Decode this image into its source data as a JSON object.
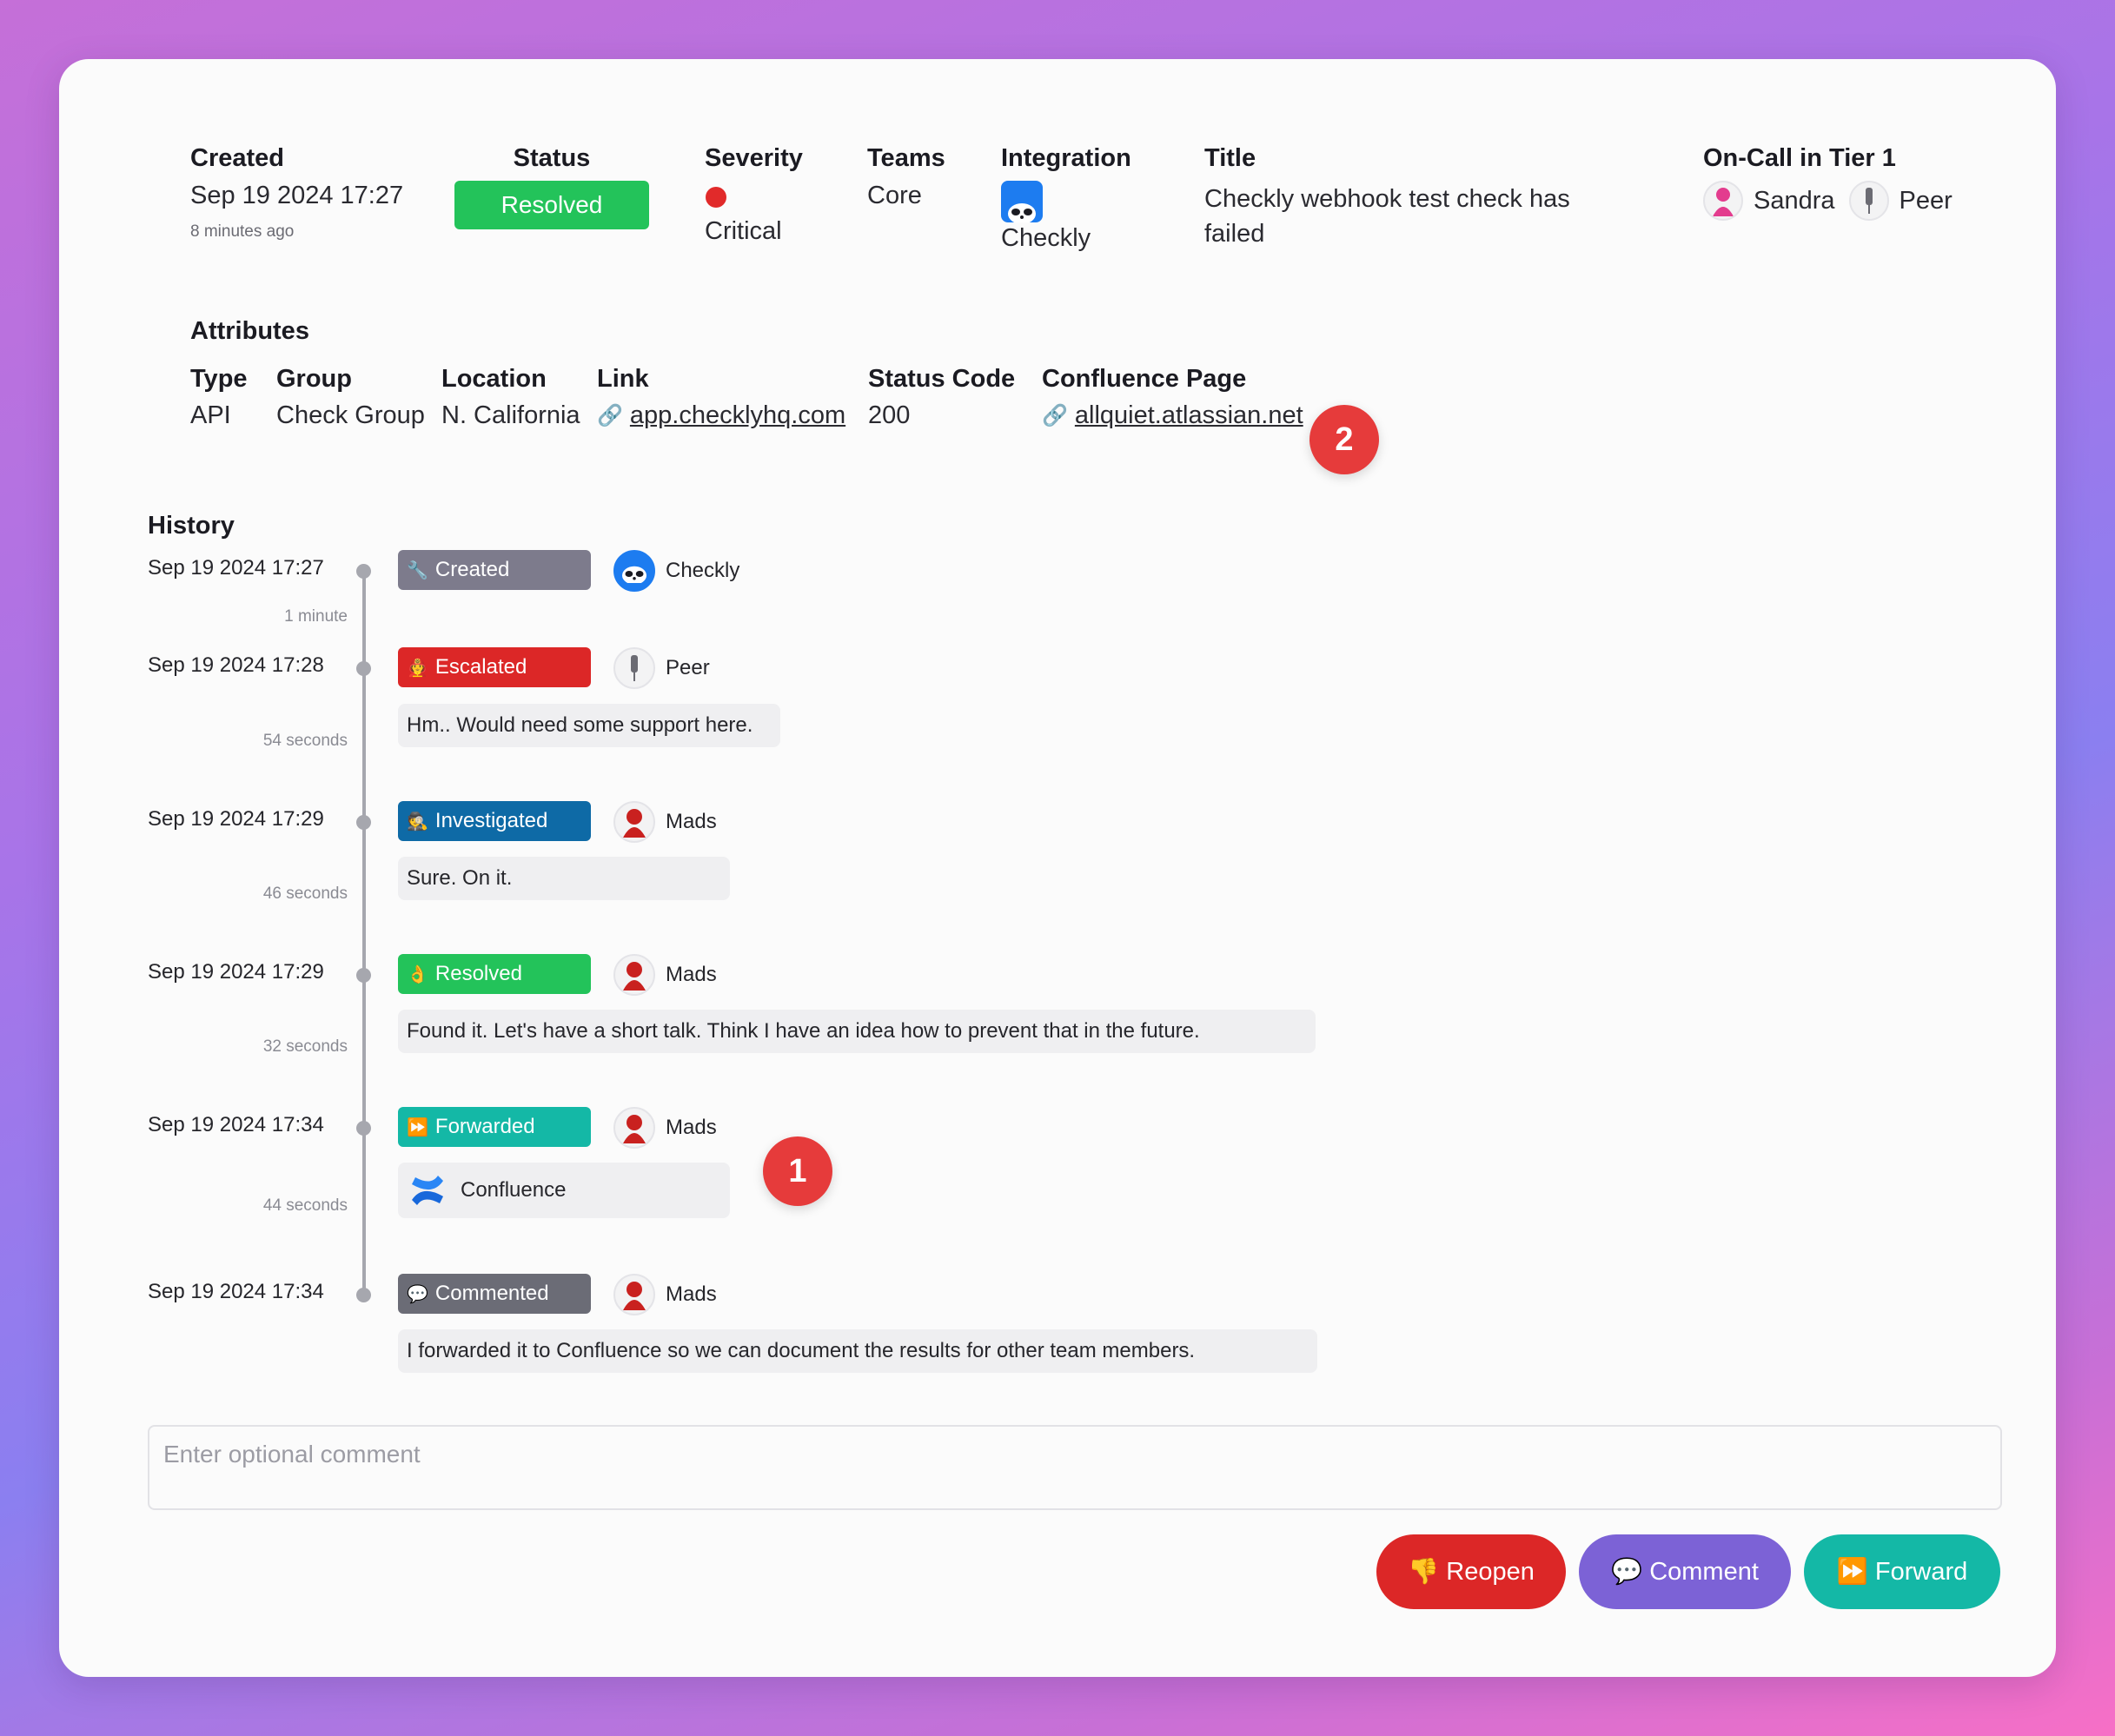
{
  "header": {
    "created_label": "Created",
    "created_value": "Sep 19 2024 17:27",
    "created_ago": "8 minutes ago",
    "status_label": "Status",
    "status_value": "Resolved",
    "severity_label": "Severity",
    "severity_value": "Critical",
    "teams_label": "Teams",
    "teams_value": "Core",
    "integration_label": "Integration",
    "integration_value": "Checkly",
    "title_label": "Title",
    "title_value": "Checkly webhook test check has failed",
    "oncall_label": "On-Call in Tier 1",
    "oncall_users": [
      "Sandra",
      "Peer"
    ]
  },
  "attributes": {
    "heading": "Attributes",
    "type_label": "Type",
    "type_value": "API",
    "group_label": "Group",
    "group_value": "Check Group",
    "location_label": "Location",
    "location_value": "N. California",
    "link_label": "Link",
    "link_value": "app.checklyhq.com",
    "status_code_label": "Status Code",
    "status_code_value": "200",
    "confluence_label": "Confluence Page",
    "confluence_value": "allquiet.atlassian.net"
  },
  "history": {
    "heading": "History",
    "events": [
      {
        "date": "Sep 19 2024 17:27",
        "tag": "Created",
        "emoji": "🔧",
        "color": "#7d7b8c",
        "actor": "Checkly",
        "gap": "1 minute"
      },
      {
        "date": "Sep 19 2024 17:28",
        "tag": "Escalated",
        "emoji": "🧑‍🚒",
        "color": "#dc2727",
        "actor": "Peer",
        "comment": "Hm.. Would need some support here.",
        "gap": "54 seconds"
      },
      {
        "date": "Sep 19 2024 17:29",
        "tag": "Investigated",
        "emoji": "🕵️",
        "color": "#0e6aa6",
        "actor": "Mads",
        "comment": "Sure. On it.",
        "gap": "46 seconds"
      },
      {
        "date": "Sep 19 2024 17:29",
        "tag": "Resolved",
        "emoji": "👌",
        "color": "#23c35a",
        "actor": "Mads",
        "comment": "Found it. Let's have a short talk. Think I have an idea how to prevent that in the future.",
        "gap": "32 seconds"
      },
      {
        "date": "Sep 19 2024 17:34",
        "tag": "Forwarded",
        "emoji": "⏩",
        "color": "#14b8a6",
        "actor": "Mads",
        "target": "Confluence",
        "gap": "44 seconds"
      },
      {
        "date": "Sep 19 2024 17:34",
        "tag": "Commented",
        "emoji": "💬",
        "color": "#6b6c76",
        "actor": "Mads",
        "comment": "I forwarded it to Confluence so we can document the results for other team members."
      }
    ]
  },
  "badges": [
    "1",
    "2"
  ],
  "comment": {
    "placeholder": "Enter optional comment"
  },
  "actions": {
    "reopen": "Reopen",
    "reopen_emoji": "👎",
    "comment": "Comment",
    "comment_emoji": "💬",
    "forward": "Forward",
    "forward_emoji": "⏩"
  },
  "colors": {
    "reopen": "#dc2727",
    "comment": "#7c62d6",
    "forward": "#14b8a6",
    "status_resolved": "#23c35a",
    "severity_critical": "#e12a2a"
  }
}
